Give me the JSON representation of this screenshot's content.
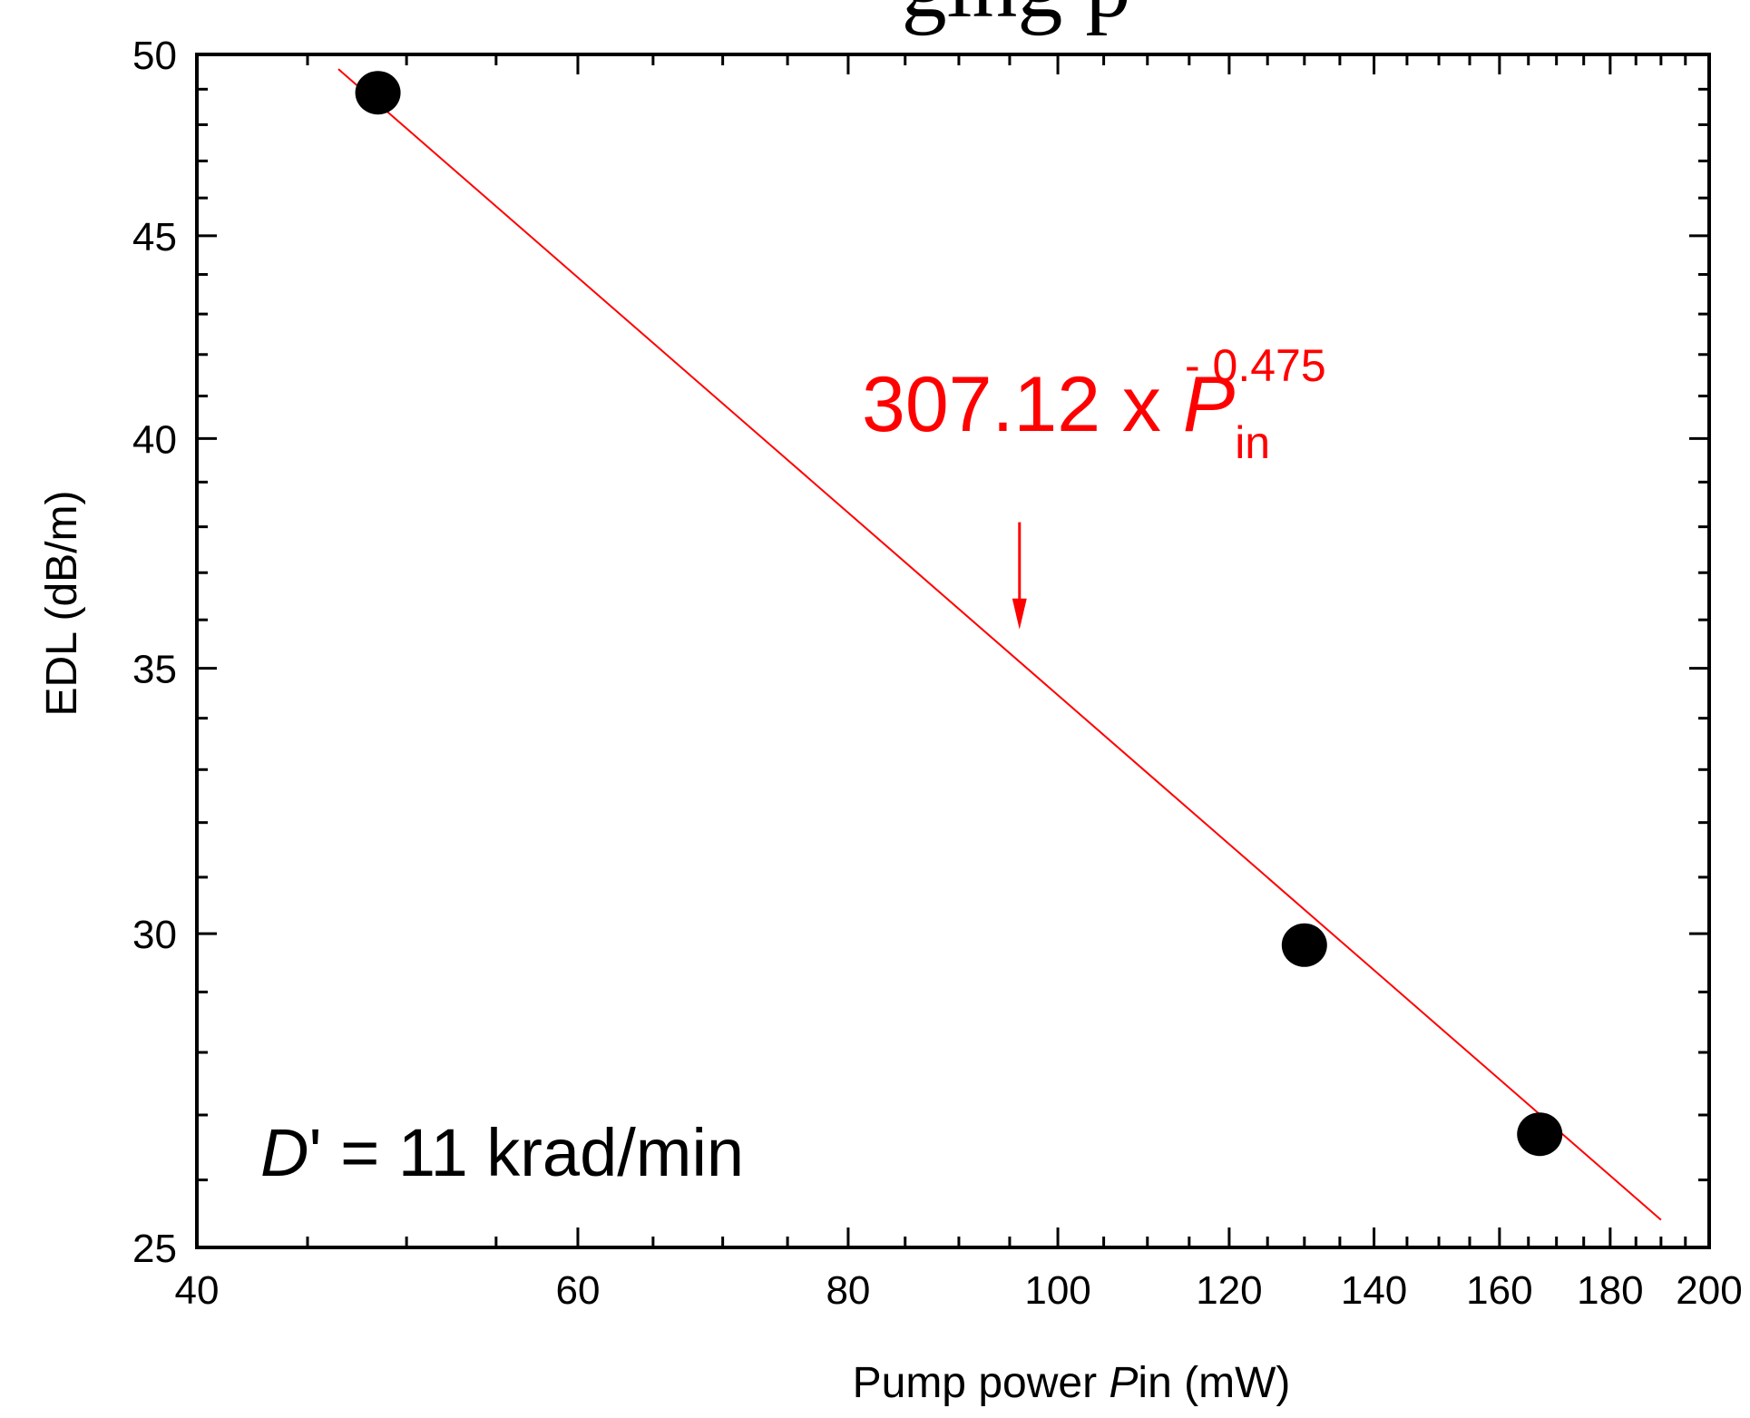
{
  "title_fragment": "ging p",
  "chart_data": {
    "type": "scatter",
    "xlabel_prefix": "Pump power ",
    "xlabel_italic": "P",
    "xlabel_suffix": "in (mW)",
    "ylabel": "EDL (dB/m)",
    "x_scale": "log",
    "y_scale": "log",
    "xlim": [
      40,
      200
    ],
    "ylim": [
      25,
      50
    ],
    "x_ticks": [
      40,
      60,
      80,
      100,
      120,
      140,
      160,
      180,
      200
    ],
    "y_ticks": [
      25,
      30,
      35,
      40,
      45,
      50
    ],
    "x_minor_ticks": [
      45,
      50,
      55,
      65,
      70,
      75,
      85,
      90,
      95,
      105,
      110,
      115,
      125,
      130,
      135,
      145,
      150,
      155,
      165,
      170,
      175,
      185,
      190,
      195
    ],
    "y_minor_ticks": [
      26,
      27,
      28,
      29,
      31,
      32,
      33,
      34,
      36,
      37,
      38,
      39,
      41,
      42,
      43,
      44,
      46,
      47,
      48,
      49
    ],
    "grid": false,
    "points": [
      {
        "x": 48.5,
        "y": 48.9
      },
      {
        "x": 130,
        "y": 29.8
      },
      {
        "x": 167,
        "y": 26.7
      }
    ],
    "fit": {
      "coefficient": 307.12,
      "exponent": -0.475,
      "x_range": [
        46.5,
        190
      ],
      "color": "#ff0000"
    },
    "annotation": {
      "coef_text": "307.12 x ",
      "var_text": "P",
      "sub_text": "in",
      "sup_text": "- 0.475",
      "color": "#ff0000",
      "arrow_x": 96,
      "arrow_y_from": 38.1,
      "arrow_y_to": 35.8
    },
    "condition": {
      "italic": "D",
      "text": "' = 11 krad/min"
    },
    "marker_color": "#000000"
  }
}
